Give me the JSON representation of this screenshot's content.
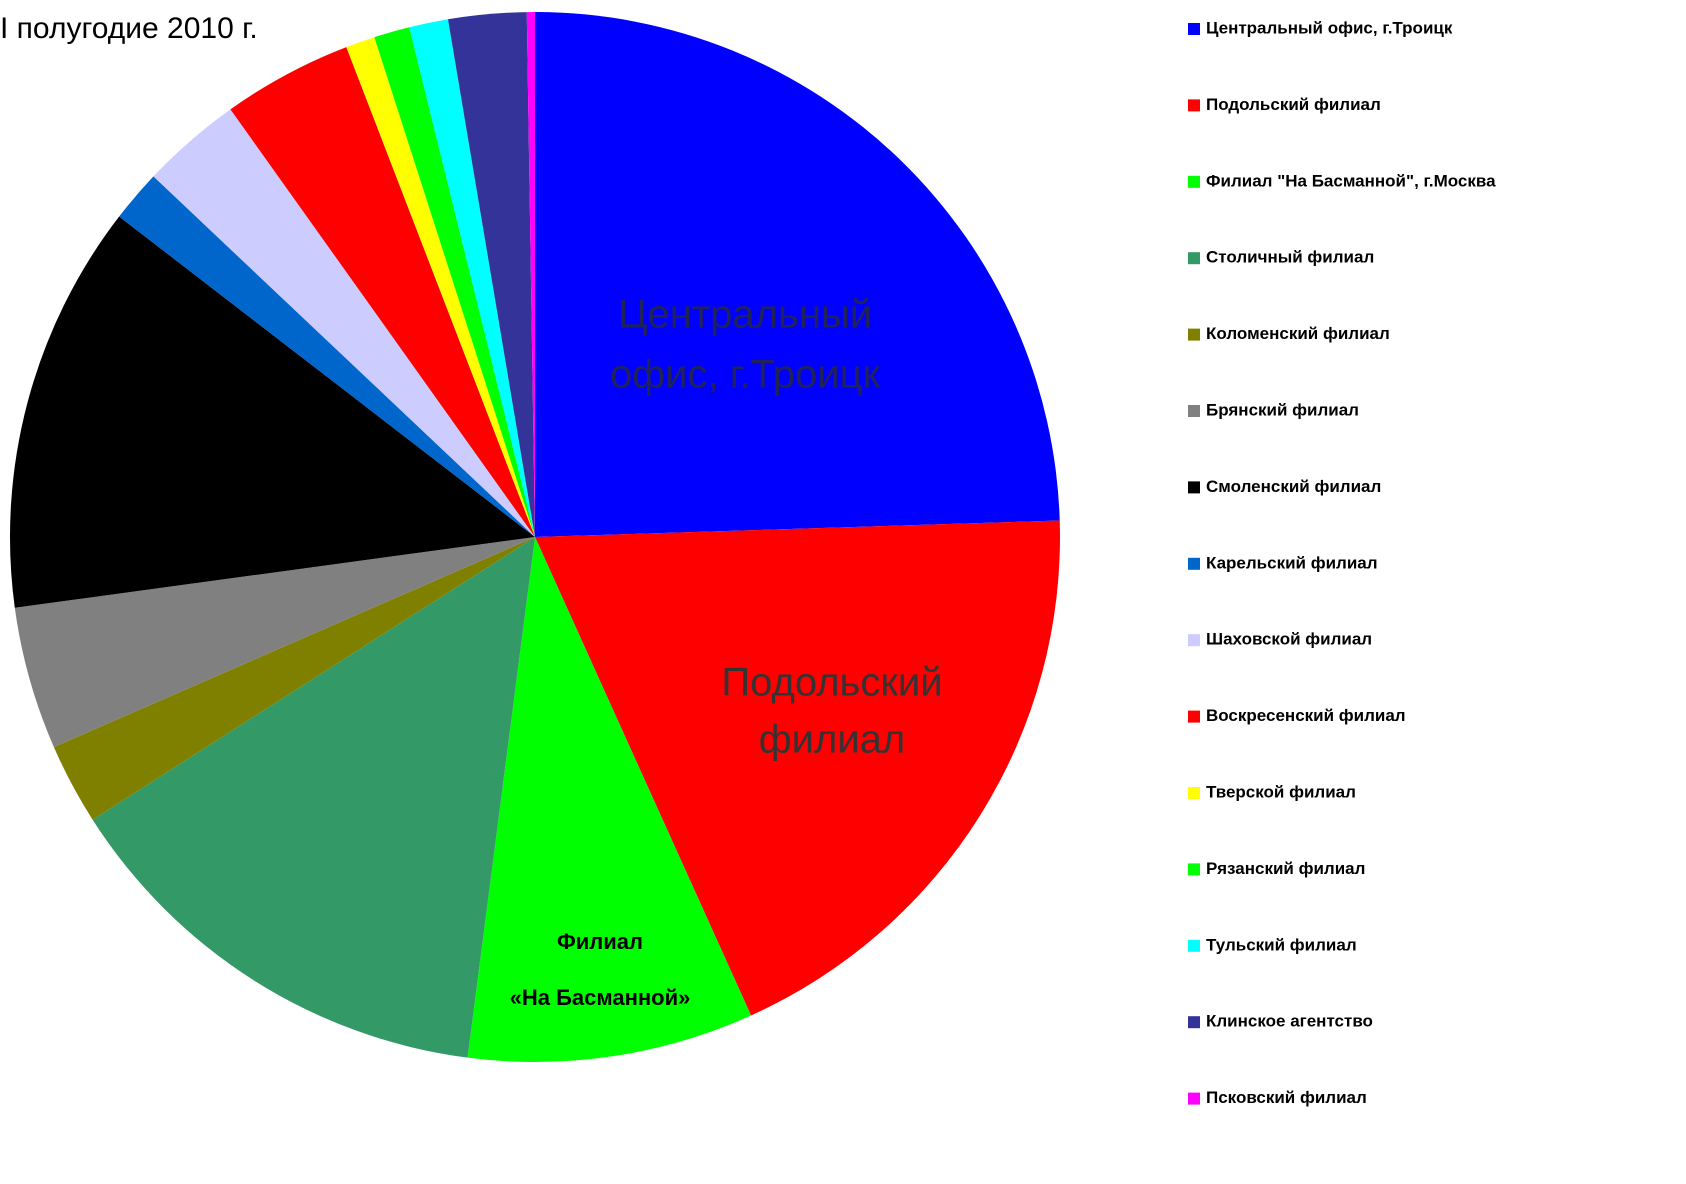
{
  "chart_data": {
    "type": "pie",
    "title": "I полугодие 2010 г.",
    "categories": [
      "Центральный офис, г.Троицк",
      "Подольский филиал",
      "Филиал \"На Басманной\", г.Москва",
      "Столичный филиал",
      "Коломенский филиал",
      "Брянский филиал",
      "Смоленский филиал",
      "Карельский филиал",
      "Шаховской филиал",
      "Воскресенский филиал",
      "Тверской филиал",
      "Рязанский филиал",
      "Тульский филиал",
      "Клинское агентство",
      "Псковский филиал"
    ],
    "values": [
      24.5,
      18.75,
      8.8,
      13.9,
      2.5,
      4.4,
      12.6,
      1.6,
      3.1,
      4.0,
      0.9,
      1.1,
      1.2,
      2.4,
      0.25
    ],
    "colors": [
      "#0000ff",
      "#ff0000",
      "#00ff00",
      "#339966",
      "#808000",
      "#808080",
      "#000000",
      "#0066cc",
      "#ccccff",
      "#ff0000",
      "#ffff00",
      "#00ff00",
      "#00ffff",
      "#333399",
      "#ff00ff"
    ],
    "annotations": [
      {
        "lines": [
          "Центральный",
          "офис, г.Троицк"
        ]
      },
      {
        "lines": [
          "Подольский",
          "филиал"
        ]
      },
      {
        "lines": [
          "Филиал",
          "«На Басманной»"
        ]
      }
    ],
    "legend": "right"
  }
}
